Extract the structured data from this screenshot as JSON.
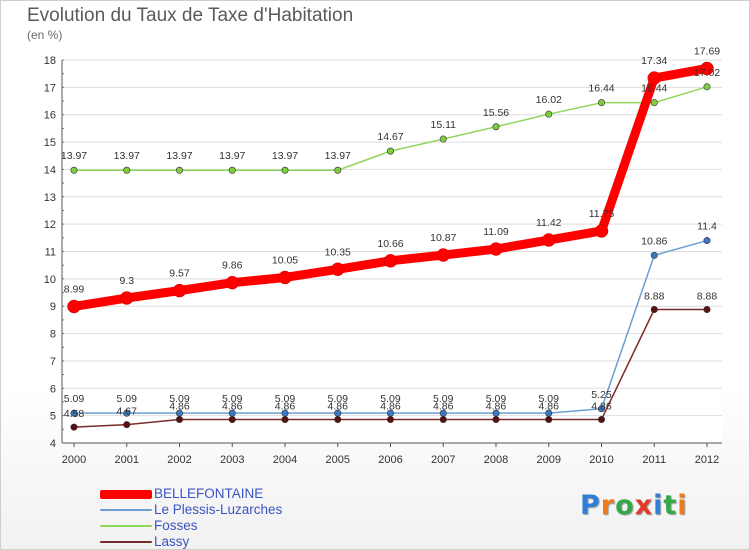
{
  "title": "Evolution du Taux de Taxe d'Habitation",
  "subtitle": "(en %)",
  "logo": {
    "text": "Proxiti",
    "colors": [
      "#2f7fd8",
      "#f07a1a",
      "#36a84a",
      "#e23b2b",
      "#2f7fd8",
      "#36a84a",
      "#f07a1a"
    ]
  },
  "chart_data": {
    "type": "line",
    "title": "Evolution du Taux de Taxe d'Habitation",
    "subtitle": "(en %)",
    "x": [
      "2000",
      "2001",
      "2002",
      "2003",
      "2004",
      "2005",
      "2006",
      "2007",
      "2008",
      "2009",
      "2010",
      "2011",
      "2012"
    ],
    "ylim": [
      4,
      18
    ],
    "yticks": [
      4,
      5,
      6,
      7,
      8,
      9,
      10,
      11,
      12,
      13,
      14,
      15,
      16,
      17,
      18
    ],
    "grid": true,
    "legend_position": "bottom-left",
    "series": [
      {
        "name": "BELLEFONTAINE",
        "color": "#ff0000",
        "values": [
          8.99,
          9.3,
          9.57,
          9.86,
          10.05,
          10.35,
          10.66,
          10.87,
          11.09,
          11.42,
          11.75,
          17.34,
          17.69
        ],
        "labels": [
          "8.99",
          "9.3",
          "9.57",
          "9.86",
          "10.05",
          "10.35",
          "10.66",
          "10.87",
          "11.09",
          "11.42",
          "11.75",
          "17.34",
          "17.69"
        ]
      },
      {
        "name": "Le Plessis-Luzarches",
        "color": "#6a9fd4",
        "values": [
          5.09,
          5.09,
          5.09,
          5.09,
          5.09,
          5.09,
          5.09,
          5.09,
          5.09,
          5.09,
          5.25,
          10.86,
          11.4
        ],
        "labels": [
          "5.09",
          "5.09",
          "5.09",
          "5.09",
          "5.09",
          "5.09",
          "5.09",
          "5.09",
          "5.09",
          "5.09",
          "5.25",
          "10.86",
          "11.4"
        ]
      },
      {
        "name": "Fosses",
        "color": "#8ed65a",
        "values": [
          13.97,
          13.97,
          13.97,
          13.97,
          13.97,
          13.97,
          14.67,
          15.11,
          15.56,
          16.02,
          16.44,
          16.44,
          17.02
        ],
        "labels": [
          "13.97",
          "13.97",
          "13.97",
          "13.97",
          "13.97",
          "13.97",
          "14.67",
          "15.11",
          "15.56",
          "16.02",
          "16.44",
          "16.44",
          "17.02"
        ]
      },
      {
        "name": "Lassy",
        "color": "#7a2a2a",
        "values": [
          4.58,
          4.67,
          4.86,
          4.86,
          4.86,
          4.86,
          4.86,
          4.86,
          4.86,
          4.86,
          4.86,
          8.88,
          8.88
        ],
        "labels": [
          "4.58",
          "4.67",
          "4.86",
          "4.86",
          "4.86",
          "4.86",
          "4.86",
          "4.86",
          "4.86",
          "4.86",
          "4.86",
          "8.88",
          "8.88"
        ]
      }
    ]
  }
}
